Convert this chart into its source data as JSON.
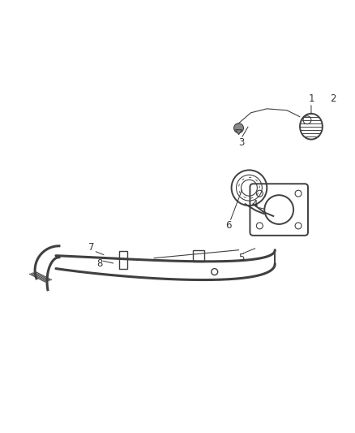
{
  "background_color": "#ffffff",
  "line_color": "#404040",
  "label_color": "#333333",
  "figsize": [
    4.39,
    5.33
  ],
  "dpi": 100,
  "label_fontsize": 8.5
}
